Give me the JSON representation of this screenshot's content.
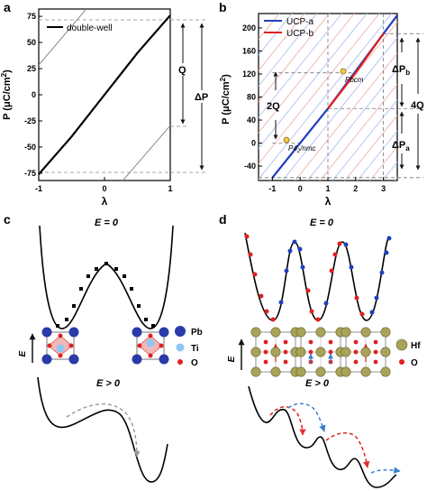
{
  "panels": {
    "a": {
      "label": "a",
      "legend": "double-well",
      "ylabel_main": "P (μC/cm",
      "ylabel_sup": "2",
      "ylabel_close": ")",
      "xlabel": "λ",
      "annot_q": "Q",
      "annot_dp": "ΔP"
    },
    "b": {
      "label": "b",
      "legend_a": "UCP-a",
      "legend_b": "UCP-b",
      "ylabel_main": "P (μC/cm",
      "ylabel_sup": "2",
      "ylabel_close": ")",
      "xlabel": "λ",
      "pbcm": "Pbcm",
      "p42_pre": "P4",
      "p42_sub": "2",
      "p42_post": "/nmc",
      "annot_2q": "2Q",
      "annot_4q": "4Q",
      "annot_dpb_main": "ΔP",
      "annot_dpb_sub": "b",
      "annot_dpa_main": "ΔP",
      "annot_dpa_sub": "a"
    },
    "c": {
      "label": "c",
      "e_zero": "E = 0",
      "e_pos": "E > 0",
      "field_arrow": "E",
      "legend_pb": "Pb",
      "legend_ti": "Ti",
      "legend_o": "O"
    },
    "d": {
      "label": "d",
      "e_zero": "E = 0",
      "e_pos": "E > 0",
      "field_arrow": "E",
      "legend_hf": "Hf",
      "legend_o": "O"
    }
  },
  "chart_data": [
    {
      "panel": "a",
      "type": "line",
      "xlabel": "λ",
      "ylabel": "P (μC/cm2)",
      "xlim": [
        -1,
        1
      ],
      "ylim": [
        -82,
        82
      ],
      "xticks": [
        -1,
        0,
        1
      ],
      "yticks": [
        -75,
        -50,
        -25,
        0,
        25,
        50,
        75
      ],
      "series": [
        {
          "name": "double-well",
          "x": [
            -1,
            -0.5,
            0,
            0.5,
            1
          ],
          "y": [
            -76,
            -40,
            0,
            40,
            76
          ]
        }
      ],
      "reference_lines_y": [
        76,
        -28,
        -76
      ]
    },
    {
      "panel": "b",
      "type": "line",
      "xlabel": "λ",
      "ylabel": "P (μC/cm2)",
      "xlim": [
        -1.5,
        3.5
      ],
      "ylim": [
        -65,
        225
      ],
      "xticks": [
        -1,
        0,
        1,
        2,
        3
      ],
      "yticks": [
        -40,
        0,
        40,
        80,
        120,
        160,
        200
      ],
      "series": [
        {
          "name": "UCP-a",
          "x": [
            -1,
            0,
            1,
            3,
            3.5
          ],
          "y": [
            -60,
            0,
            60,
            190,
            222
          ]
        },
        {
          "name": "UCP-b",
          "x": [
            1,
            2,
            3
          ],
          "y": [
            60,
            122,
            190
          ]
        }
      ],
      "reference_lines_y": [
        190,
        122,
        60,
        0,
        -60
      ]
    }
  ]
}
